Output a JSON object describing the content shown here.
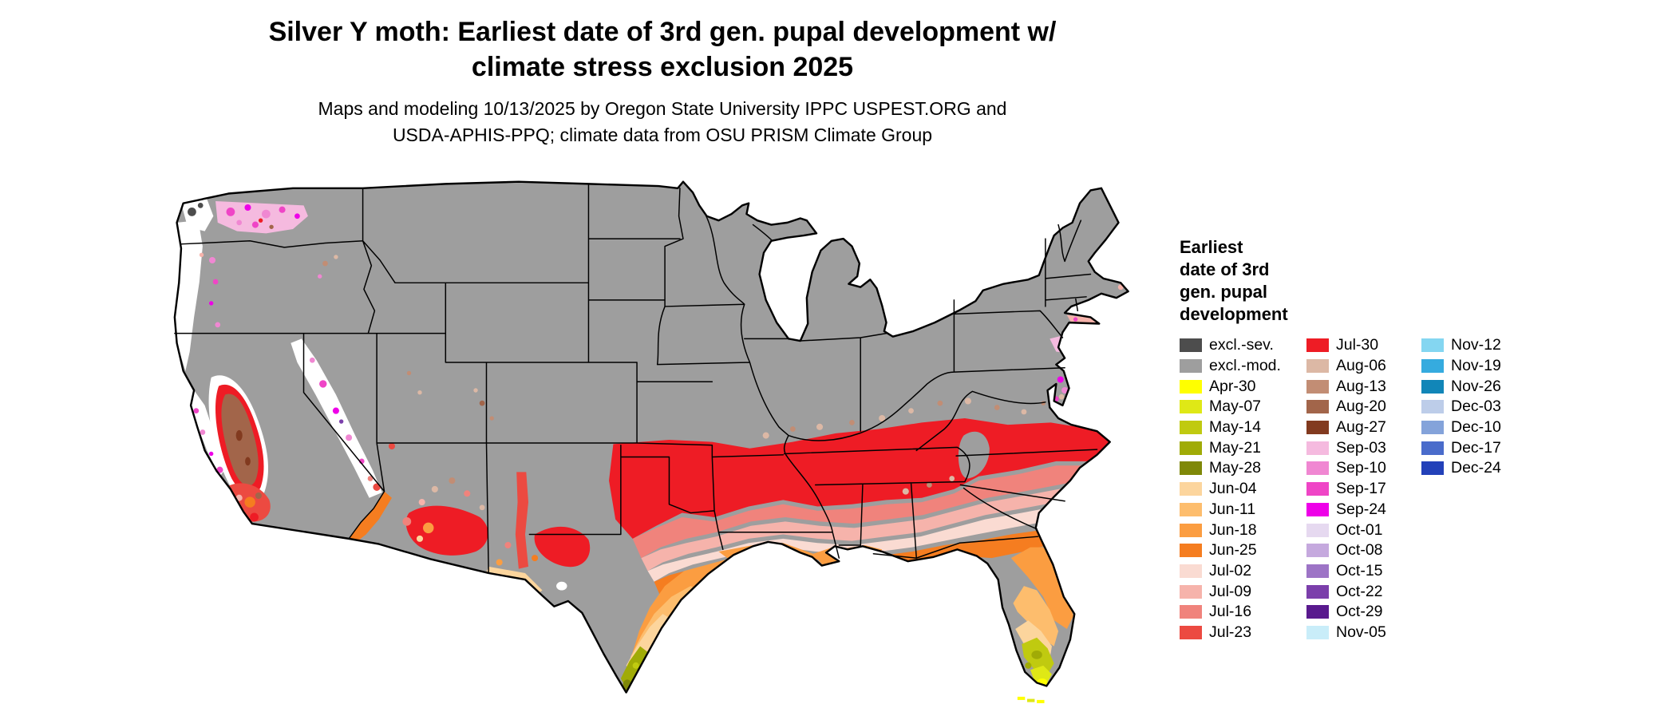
{
  "title": {
    "line1": "Silver Y moth: Earliest date of 3rd gen. pupal development w/",
    "line2": "climate stress exclusion 2025"
  },
  "subtitle": {
    "line1": "Maps and modeling 10/13/2025 by Oregon State University IPPC USPEST.ORG and",
    "line2": "USDA-APHIS-PPQ; climate data from OSU PRISM Climate Group"
  },
  "legend": {
    "title_lines": [
      "Earliest",
      "date of 3rd",
      "gen. pupal",
      "development"
    ],
    "columns": [
      [
        "excl.-sev.",
        "excl.-mod.",
        "Apr-30",
        "May-07",
        "May-14",
        "May-21",
        "May-28",
        "Jun-04",
        "Jun-11",
        "Jun-18",
        "Jun-25",
        "Jul-02",
        "Jul-09",
        "Jul-16",
        "Jul-23"
      ],
      [
        "Jul-30",
        "Aug-06",
        "Aug-13",
        "Aug-20",
        "Aug-27",
        "Sep-03",
        "Sep-10",
        "Sep-17",
        "Sep-24",
        "Oct-01",
        "Oct-08",
        "Oct-15",
        "Oct-22",
        "Oct-29",
        "Nov-05"
      ],
      [
        "Nov-12",
        "Nov-19",
        "Nov-26",
        "Dec-03",
        "Dec-10",
        "Dec-17",
        "Dec-24"
      ]
    ],
    "colors": {
      "excl.-sev.": "#4d4d4d",
      "excl.-mod.": "#9e9e9e",
      "Apr-30": "#ffff00",
      "May-07": "#dfe816",
      "May-14": "#c0ca10",
      "May-21": "#a0ab06",
      "May-28": "#7f8808",
      "Jun-04": "#fcd59d",
      "Jun-11": "#fdbd6d",
      "Jun-18": "#fb9d41",
      "Jun-25": "#f57d20",
      "Jul-02": "#fadbd2",
      "Jul-09": "#f6b3ab",
      "Jul-16": "#f0837c",
      "Jul-23": "#ec4a41",
      "Jul-30": "#ee1c25",
      "Aug-06": "#dcb8a5",
      "Aug-13": "#c28d74",
      "Aug-20": "#a2654a",
      "Aug-27": "#823a1f",
      "Sep-03": "#f5badf",
      "Sep-10": "#f087d2",
      "Sep-17": "#ef45c6",
      "Sep-24": "#ee00e8",
      "Oct-01": "#e6d9f0",
      "Oct-08": "#c5a9de",
      "Oct-15": "#9d74c6",
      "Oct-22": "#7b3fab",
      "Oct-29": "#591a8e",
      "Nov-05": "#c9edf9",
      "Nov-12": "#84d6f1",
      "Nov-19": "#35abdf",
      "Nov-26": "#1186b8",
      "Dec-03": "#bdcde9",
      "Dec-10": "#84a3da",
      "Dec-17": "#4a6ccb",
      "Dec-24": "#2341b9"
    }
  },
  "map": {
    "base_region_label": "excl.-mod."
  }
}
